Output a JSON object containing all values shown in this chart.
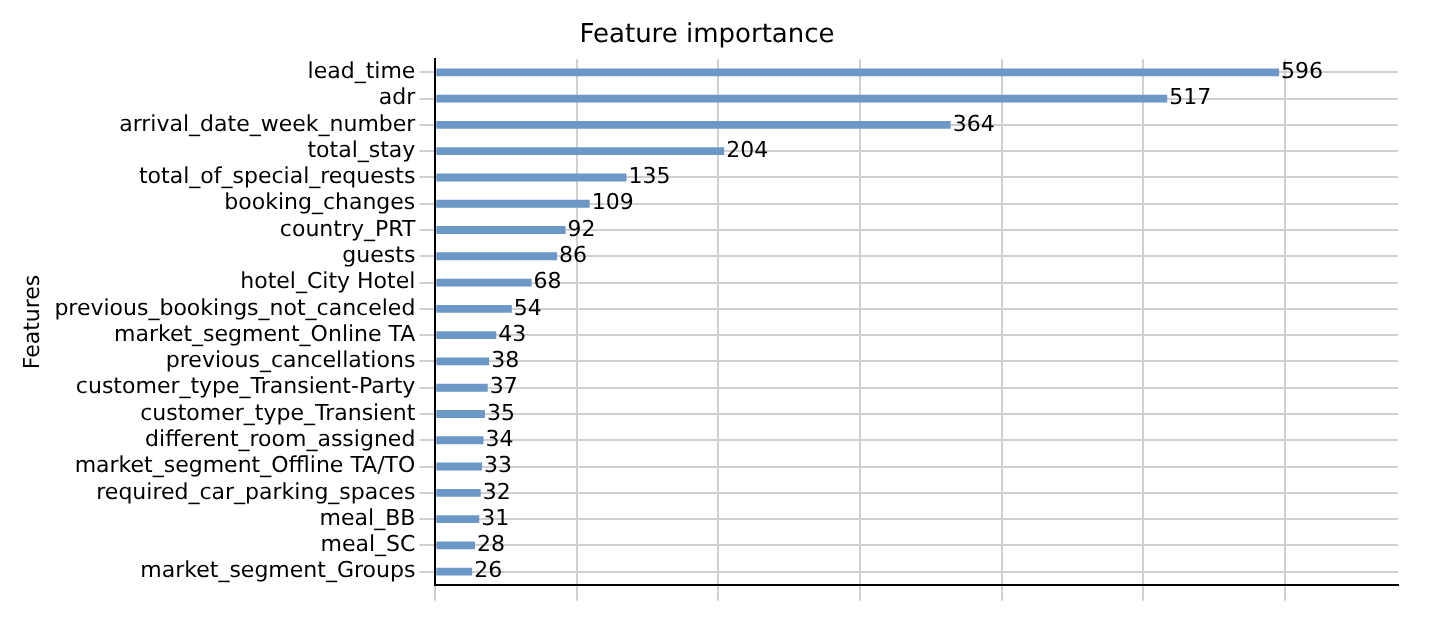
{
  "chart_data": {
    "type": "bar",
    "orientation": "horizontal",
    "title": "Feature importance",
    "ylabel": "Features",
    "categories": [
      "lead_time",
      "adr",
      "arrival_date_week_number",
      "total_stay",
      "total_of_special_requests",
      "booking_changes",
      "country_PRT",
      "guests",
      "hotel_City Hotel",
      "previous_bookings_not_canceled",
      "market_segment_Online TA",
      "previous_cancellations",
      "customer_type_Transient-Party",
      "customer_type_Transient",
      "different_room_assigned",
      "market_segment_Offline TA/TO",
      "required_car_parking_spaces",
      "meal_BB",
      "meal_SC",
      "market_segment_Groups"
    ],
    "values": [
      596,
      517,
      364,
      204,
      135,
      109,
      92,
      86,
      68,
      54,
      43,
      38,
      37,
      35,
      34,
      33,
      32,
      31,
      28,
      26
    ],
    "color": "#6b98c6",
    "data_labels": true,
    "grid": true,
    "tick_labels": "y",
    "xlim": [
      0,
      680
    ],
    "xticks": [
      {
        "value": 0,
        "label": null
      },
      {
        "value": 100,
        "label": null
      },
      {
        "value": 200,
        "label": null
      },
      {
        "value": 300,
        "label": null
      },
      {
        "value": 400,
        "label": null
      },
      {
        "value": 500,
        "label": null
      },
      {
        "value": 600,
        "label": null
      }
    ]
  }
}
